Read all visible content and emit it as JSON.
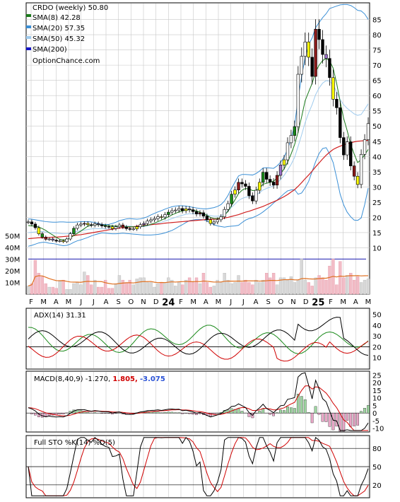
{
  "chart_data": {
    "type": "candlestick",
    "title": "CRDO (weekly) 50.80",
    "watermark": "OptionChance.com",
    "legend": [
      {
        "name": "SMA(8) 42.28",
        "color": "#1a7a1a"
      },
      {
        "name": "SMA(20) 57.35",
        "color": "#3a8fd6"
      },
      {
        "name": "SMA(50) 45.32",
        "color": "#9fcbee"
      },
      {
        "name": "SMA(200)",
        "color": "#1515c8"
      }
    ],
    "price_axis": {
      "ylim": [
        5,
        90
      ],
      "ticks": [
        "10",
        "15",
        "20",
        "25",
        "30",
        "35",
        "40",
        "45",
        "50",
        "55",
        "60",
        "65",
        "70",
        "75",
        "80",
        "85"
      ]
    },
    "volume_axis": {
      "ylim": [
        0,
        55
      ],
      "ticks": [
        "10M",
        "20M",
        "30M",
        "40M",
        "50M"
      ]
    },
    "x_ticks": [
      "F",
      "M",
      "A",
      "M",
      "J",
      "J",
      "A",
      "S",
      "O",
      "N",
      "D",
      "24",
      "F",
      "M",
      "A",
      "M",
      "J",
      "J",
      "A",
      "S",
      "O",
      "N",
      "D",
      "25",
      "F",
      "M",
      "A",
      "M"
    ],
    "price_close": [
      18.5,
      17.8,
      16.6,
      14.6,
      13.5,
      12.8,
      12.9,
      12.5,
      12.2,
      12.3,
      12.0,
      12.9,
      14.6,
      16.4,
      17.5,
      17.8,
      18.0,
      17.6,
      17.4,
      17.9,
      17.6,
      17.2,
      17.0,
      16.9,
      16.3,
      16.9,
      17.5,
      16.8,
      16.3,
      16.2,
      16.2,
      16.9,
      17.6,
      18.0,
      18.8,
      19.2,
      19.6,
      20.2,
      20.1,
      20.9,
      21.7,
      22.2,
      22.4,
      22.9,
      22.2,
      22.8,
      22.5,
      21.9,
      21.1,
      21.5,
      20.4,
      19.2,
      18.0,
      18.5,
      19.2,
      20.2,
      22.6,
      24.5,
      27.6,
      29.0,
      31.5,
      31.0,
      30.2,
      27.1,
      25.4,
      28.9,
      31.5,
      34.8,
      32.5,
      31.6,
      30.6,
      33.8,
      37.2,
      38.9,
      44.5,
      46.9,
      49.8,
      67.0,
      72.9,
      77.6,
      72.6,
      66.3,
      81.8,
      78.4,
      73.5,
      72.2,
      65.9,
      58.8,
      56.0,
      46.2,
      40.5,
      44.8,
      36.9,
      33.5,
      30.8,
      40.7,
      45.5,
      50.8
    ],
    "sma8": [
      17.3,
      17.2,
      17.1,
      16.8,
      16.3,
      15.7,
      14.9,
      14.2,
      13.4,
      12.8,
      12.6,
      12.7,
      13.3,
      14.0,
      14.8,
      15.5,
      16.3,
      17.1,
      17.4,
      17.6,
      17.6,
      17.5,
      17.4,
      17.3,
      17.2,
      17.1,
      17.0,
      16.9,
      16.9,
      16.9,
      16.9,
      16.9,
      17.0,
      17.2,
      17.4,
      17.7,
      18.1,
      18.6,
      19.1,
      19.6,
      20.2,
      20.8,
      21.3,
      21.8,
      22.1,
      22.4,
      22.5,
      22.4,
      22.1,
      21.7,
      21.2,
      20.6,
      20.0,
      19.6,
      19.6,
      19.9,
      20.7,
      22.0,
      23.9,
      25.8,
      27.8,
      28.9,
      29.5,
      29.3,
      28.8,
      28.9,
      29.6,
      30.9,
      31.2,
      31.5,
      31.9,
      32.9,
      34.4,
      35.9,
      38.1,
      40.8,
      43.9,
      48.0,
      53.0,
      58.3,
      61.2,
      64.0,
      67.8,
      70.0,
      71.5,
      72.2,
      71.4,
      69.0,
      64.0,
      58.0,
      52.5,
      48.5,
      44.0,
      40.8,
      38.0,
      39.0,
      40.6,
      42.3
    ],
    "bb_upper": [
      19.5,
      19.4,
      19.2,
      19.0,
      18.8,
      18.6,
      18.5,
      18.4,
      18.4,
      18.5,
      18.5,
      18.4,
      18.4,
      18.4,
      18.5,
      18.6,
      18.6,
      18.6,
      18.5,
      18.3,
      18.0,
      17.7,
      17.6,
      17.7,
      18.0,
      18.4,
      18.9,
      19.2,
      19.5,
      19.6,
      19.5,
      19.4,
      19.5,
      19.8,
      20.2,
      20.8,
      21.3,
      21.8,
      22.2,
      22.7,
      23.1,
      23.5,
      23.7,
      23.8,
      23.8,
      23.7,
      23.5,
      23.3,
      23.1,
      22.9,
      22.8,
      22.8,
      23.0,
      23.2,
      23.6,
      24.2,
      25.4,
      27.2,
      29.5,
      31.6,
      33.6,
      34.1,
      34.1,
      34.0,
      33.9,
      34.4,
      35.2,
      36.2,
      36.3,
      36.2,
      36.1,
      36.9,
      38.1,
      39.8,
      42.3,
      45.8,
      50.3,
      59.0,
      66.2,
      72.5,
      76.8,
      78.9,
      82.3,
      84.0,
      85.6,
      86.9,
      88.6,
      89.0,
      89.4,
      89.8,
      89.9,
      89.9,
      89.6,
      88.9,
      88.0,
      87.8,
      86.8,
      85.0
    ],
    "bb_mid": [
      15.0,
      15.1,
      15.2,
      15.3,
      15.3,
      15.2,
      15.0,
      14.9,
      14.8,
      14.7,
      14.6,
      14.6,
      14.8,
      15.1,
      15.4,
      15.6,
      15.8,
      16.0,
      16.2,
      16.3,
      16.3,
      16.3,
      16.2,
      16.2,
      16.3,
      16.5,
      16.8,
      17.0,
      17.1,
      17.1,
      17.0,
      16.9,
      16.9,
      17.0,
      17.2,
      17.5,
      17.8,
      18.1,
      18.4,
      18.8,
      19.2,
      19.6,
      20.0,
      20.4,
      20.7,
      21.0,
      21.2,
      21.2,
      21.2,
      21.1,
      21.0,
      20.8,
      20.6,
      20.4,
      20.4,
      20.6,
      21.1,
      22.1,
      23.3,
      24.4,
      25.5,
      26.2,
      26.6,
      26.8,
      26.9,
      27.4,
      28.1,
      29.0,
      29.5,
      29.9,
      30.4,
      31.3,
      32.4,
      33.8,
      35.5,
      37.4,
      39.7,
      43.3,
      47.1,
      51.1,
      54.3,
      57.0,
      60.3,
      62.5,
      64.1,
      64.9,
      64.7,
      63.5,
      61.2,
      58.7,
      57.0,
      55.8,
      54.9,
      54.0,
      53.5,
      53.8,
      55.5,
      57.3
    ],
    "bb_lower": [
      10.5,
      10.8,
      11.2,
      11.6,
      11.8,
      11.8,
      11.5,
      11.4,
      11.2,
      10.9,
      10.7,
      10.8,
      11.2,
      11.8,
      12.3,
      12.6,
      13.0,
      13.4,
      13.9,
      14.3,
      14.6,
      14.9,
      14.8,
      14.7,
      14.6,
      14.6,
      14.7,
      14.8,
      14.7,
      14.6,
      14.5,
      14.4,
      14.3,
      14.2,
      14.2,
      14.2,
      14.3,
      14.4,
      14.6,
      14.9,
      15.3,
      15.7,
      16.3,
      17.0,
      17.6,
      18.3,
      18.9,
      19.1,
      19.3,
      19.3,
      19.2,
      18.8,
      18.2,
      17.6,
      17.2,
      17.0,
      16.8,
      17.0,
      17.1,
      17.2,
      17.4,
      18.3,
      19.1,
      19.6,
      19.9,
      20.4,
      21.0,
      21.8,
      22.7,
      23.6,
      24.7,
      25.7,
      26.7,
      27.8,
      28.7,
      29.0,
      29.1,
      27.6,
      28.0,
      29.7,
      31.8,
      35.1,
      38.3,
      41.0,
      42.6,
      42.9,
      40.8,
      38.0,
      33.0,
      27.6,
      24.1,
      21.7,
      20.2,
      19.1,
      19.0,
      19.8,
      24.2,
      29.6
    ],
    "sma200": [
      13.0,
      13.1,
      13.2,
      13.3,
      13.3,
      13.4,
      13.4,
      13.5,
      13.5,
      13.6,
      13.7,
      13.8,
      13.9,
      14.0,
      14.2,
      14.3,
      14.5,
      14.7,
      14.9,
      15.1,
      15.3,
      15.5,
      15.7,
      15.9,
      16.1,
      16.3,
      16.5,
      16.6,
      16.7,
      16.8,
      16.9,
      17.1,
      17.2,
      17.3,
      17.5,
      17.6,
      17.7,
      17.8,
      17.9,
      18.1,
      18.2,
      18.3,
      18.4,
      18.5,
      18.6,
      18.7,
      18.8,
      18.9,
      19.0,
      19.1,
      19.2,
      19.3,
      19.4,
      19.4,
      19.5,
      19.6,
      19.8,
      20.0,
      20.3,
      20.6,
      20.9,
      21.3,
      21.7,
      22.0,
      22.4,
      22.8,
      23.2,
      23.6,
      24.1,
      24.6,
      25.1,
      25.6,
      26.2,
      26.8,
      27.5,
      28.3,
      29.1,
      30.2,
      31.4,
      32.7,
      33.9,
      35.2,
      36.6,
      37.9,
      39.2,
      40.4,
      41.4,
      42.3,
      42.9,
      43.4,
      43.8,
      44.2,
      44.5,
      44.8,
      45.0,
      45.1,
      45.2,
      45.3
    ],
    "volume_m": [
      7,
      9,
      29,
      18,
      15,
      9,
      6,
      6,
      5,
      11,
      12,
      4,
      4,
      9,
      10,
      8,
      19,
      16,
      8,
      12,
      6,
      6,
      12,
      5,
      5,
      9,
      16,
      12,
      10,
      12,
      8,
      13,
      14,
      14,
      10,
      10,
      6,
      9,
      10,
      10,
      14,
      12,
      7,
      10,
      8,
      12,
      14,
      10,
      14,
      9,
      18,
      10,
      6,
      7,
      12,
      10,
      18,
      12,
      9,
      10,
      16,
      10,
      12,
      10,
      8,
      12,
      10,
      12,
      18,
      14,
      18,
      8,
      14,
      14,
      12,
      15,
      10,
      12,
      30,
      12,
      10,
      7,
      14,
      16,
      14,
      12,
      24,
      30,
      8,
      28,
      14,
      16,
      18,
      12,
      15,
      10,
      12,
      13
    ],
    "adx_panel": {
      "title": "ADX(14) 31.31",
      "ylim": [
        0,
        55
      ],
      "ticks": [
        "10",
        "20",
        "30",
        "40",
        "50"
      ]
    },
    "macd_panel": {
      "title": "MACD(8,40,9) -1.270,",
      "value2": "1.805,",
      "value3": "-3.075",
      "ylim": [
        -12,
        27
      ],
      "ticks": [
        "-10",
        "-5",
        "0",
        "5",
        "10",
        "15",
        "20",
        "25"
      ]
    },
    "sto_panel": {
      "title": "Full STO %K(14) %D(5)",
      "ylim": [
        0,
        100
      ],
      "ticks": [
        "20",
        "50",
        "80"
      ]
    }
  }
}
